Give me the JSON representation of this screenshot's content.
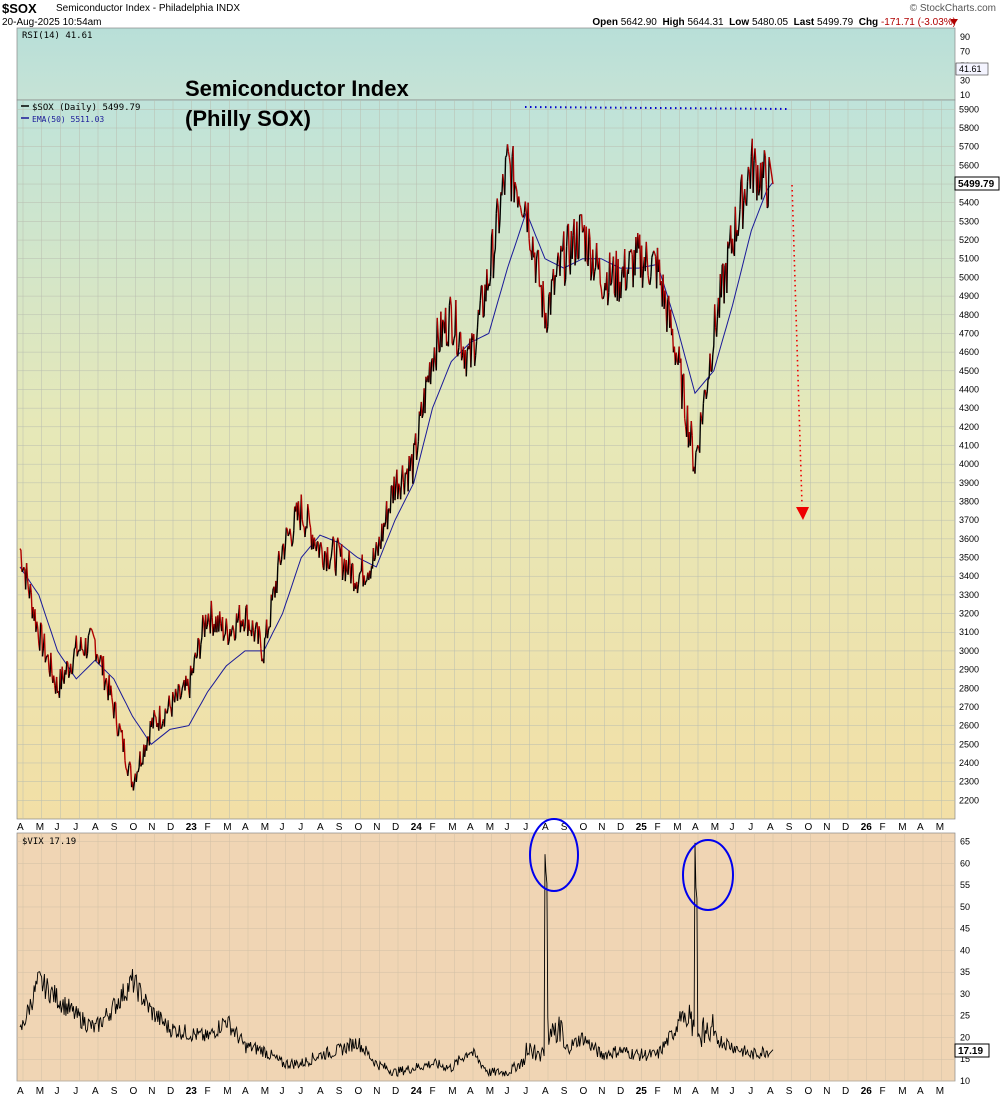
{
  "header": {
    "symbol": "$SOX",
    "name": "Semiconductor Index - Philadelphia INDX",
    "date": "20-Aug-2025 10:54am",
    "credit": "© StockCharts.com",
    "open_label": "Open",
    "open": "5642.90",
    "high_label": "High",
    "high": "5644.31",
    "low_label": "Low",
    "low": "5480.05",
    "last_label": "Last",
    "last": "5499.79",
    "chg_label": "Chg",
    "chg": "-171.71 (-3.03%)"
  },
  "colors": {
    "price": "#b00000",
    "price_up": "#000000",
    "ema": "#1a1a99",
    "annotation": "#0000cc",
    "arrow": "#ee0000",
    "vix": "#000000"
  },
  "rsi": {
    "label": "RSI(14) 41.61",
    "ticks": [
      "90",
      "70",
      "50",
      "30",
      "10"
    ],
    "value": 41.61,
    "value_label": "41.61"
  },
  "main": {
    "annotation_title_line1": "Semiconductor Index",
    "annotation_title_line2": "(Philly SOX)",
    "legend_price": "$SOX (Daily) 5499.79",
    "legend_ema": "EMA(50) 5511.03",
    "last_label": "5499.79"
  },
  "vix": {
    "label": "$VIX 17.19",
    "last_label": "17.19",
    "ticks": [
      "65",
      "60",
      "55",
      "50",
      "45",
      "40",
      "35",
      "30",
      "25",
      "20",
      "15",
      "10"
    ]
  },
  "months": [
    "A",
    "M",
    "J",
    "J",
    "A",
    "S",
    "O",
    "N",
    "D",
    "23",
    "F",
    "M",
    "A",
    "M",
    "J",
    "J",
    "A",
    "S",
    "O",
    "N",
    "D",
    "24",
    "F",
    "M",
    "A",
    "M",
    "J",
    "J",
    "A",
    "S",
    "O",
    "N",
    "D",
    "25",
    "F",
    "M",
    "A",
    "M",
    "J",
    "J",
    "A",
    "S",
    "O",
    "N",
    "D",
    "26",
    "F",
    "M",
    "A",
    "M"
  ],
  "chart_data": [
    {
      "type": "line",
      "title": "Semiconductor Index (Philly SOX)",
      "series_label": "$SOX (Daily) 5499.79",
      "x": [
        "2022-04",
        "2022-05",
        "2022-06",
        "2022-07",
        "2022-08",
        "2022-09",
        "2022-10",
        "2022-11",
        "2022-12",
        "2023-01",
        "2023-02",
        "2023-03",
        "2023-04",
        "2023-05",
        "2023-06",
        "2023-07",
        "2023-08",
        "2023-09",
        "2023-10",
        "2023-11",
        "2023-12",
        "2024-01",
        "2024-02",
        "2024-03",
        "2024-04",
        "2024-05",
        "2024-06",
        "2024-07",
        "2024-08",
        "2024-09",
        "2024-10",
        "2024-11",
        "2024-12",
        "2025-01",
        "2025-02",
        "2025-03",
        "2025-04",
        "2025-05",
        "2025-06",
        "2025-07",
        "2025-08"
      ],
      "series": [
        {
          "name": "$SOX (Daily)",
          "values": [
            3550,
            3100,
            2800,
            3000,
            3050,
            2700,
            2300,
            2600,
            2700,
            2800,
            3200,
            3100,
            3200,
            3000,
            3550,
            3750,
            3550,
            3500,
            3400,
            3500,
            3900,
            4000,
            4600,
            4800,
            4550,
            5000,
            5600,
            5400,
            4800,
            5100,
            5250,
            5000,
            5000,
            5100,
            5050,
            4600,
            4000,
            4700,
            5200,
            5600,
            5499.79
          ]
        },
        {
          "name": "EMA(50)",
          "values": [
            3450,
            3300,
            3000,
            2850,
            2950,
            2850,
            2650,
            2500,
            2580,
            2600,
            2780,
            2920,
            3000,
            3000,
            3200,
            3500,
            3620,
            3580,
            3500,
            3450,
            3700,
            3900,
            4300,
            4550,
            4650,
            4700,
            5050,
            5350,
            5100,
            5050,
            5100,
            5100,
            5050,
            5050,
            5070,
            4750,
            4380,
            4500,
            4850,
            5250,
            5511.03
          ]
        }
      ],
      "ylim": [
        2100,
        5950
      ],
      "ylabel": "",
      "annotations": [
        "resistance line near 5890",
        "projected drop toward 3700"
      ]
    },
    {
      "type": "line",
      "series_label": "$VIX 17.19",
      "x": [
        "2022-04",
        "2022-05",
        "2022-06",
        "2022-07",
        "2022-08",
        "2022-09",
        "2022-10",
        "2022-11",
        "2022-12",
        "2023-01",
        "2023-02",
        "2023-03",
        "2023-04",
        "2023-05",
        "2023-06",
        "2023-07",
        "2023-08",
        "2023-09",
        "2023-10",
        "2023-11",
        "2023-12",
        "2024-01",
        "2024-02",
        "2024-03",
        "2024-04",
        "2024-05",
        "2024-06",
        "2024-07",
        "2024-08",
        "2024-09",
        "2024-10",
        "2024-11",
        "2024-12",
        "2025-01",
        "2025-02",
        "2025-03",
        "2025-04",
        "2025-05",
        "2025-06",
        "2025-07",
        "2025-08"
      ],
      "series": [
        {
          "name": "$VIX",
          "values": [
            21,
            33,
            29,
            25,
            22,
            27,
            33,
            26,
            22,
            21,
            20,
            24,
            18,
            17,
            14,
            14,
            16,
            17,
            19,
            14,
            12,
            13,
            14,
            13,
            17,
            12,
            12,
            15,
            65,
            17,
            20,
            16,
            17,
            16,
            16,
            22,
            60,
            20,
            18,
            16,
            17.19
          ]
        }
      ],
      "ylim": [
        10,
        67
      ]
    }
  ]
}
